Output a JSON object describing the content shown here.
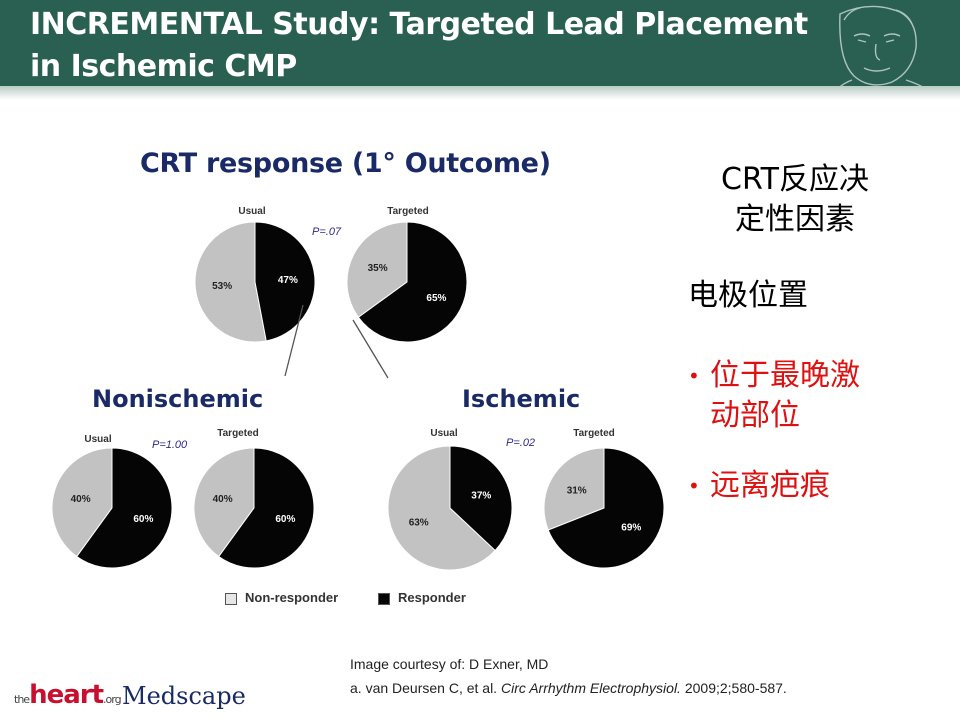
{
  "slide": {
    "title_line1": "INCREMENTAL Study: Targeted Lead Placement",
    "title_line2": "in Ischemic CMP"
  },
  "figure": {
    "title": "CRT response (1° Outcome)",
    "groups": [
      {
        "name": "",
        "p_value": "P=.07",
        "usual": {
          "label": "Usual",
          "non_responder": "53%",
          "responder": "47%"
        },
        "targeted": {
          "label": "Targeted",
          "non_responder": "35%",
          "responder": "65%"
        }
      },
      {
        "name": "Nonischemic",
        "p_value": "P=1.00",
        "usual": {
          "label": "Usual",
          "non_responder": "40%",
          "responder": "60%"
        },
        "targeted": {
          "label": "Targeted",
          "non_responder": "40%",
          "responder": "60%"
        }
      },
      {
        "name": "Ischemic",
        "p_value": "P=.02",
        "usual": {
          "label": "Usual",
          "non_responder": "63%",
          "responder": "37%"
        },
        "targeted": {
          "label": "Targeted",
          "non_responder": "31%",
          "responder": "69%"
        }
      }
    ],
    "legend": {
      "non_responder": "Non-responder",
      "responder": "Responder"
    },
    "colors": {
      "non_responder": "#c2c2c2",
      "responder": "#050505"
    }
  },
  "chart_data": {
    "type": "pie",
    "title": "CRT response (1° Outcome)",
    "series_names": [
      "Non-responder",
      "Responder"
    ],
    "pies": [
      {
        "group": "",
        "arm": "Usual",
        "values": [
          53,
          47
        ]
      },
      {
        "group": "",
        "arm": "Targeted",
        "values": [
          35,
          65
        ]
      },
      {
        "group": "Nonischemic",
        "arm": "Usual",
        "values": [
          40,
          60
        ]
      },
      {
        "group": "Nonischemic",
        "arm": "Targeted",
        "values": [
          40,
          60
        ]
      },
      {
        "group": "Ischemic",
        "arm": "Usual",
        "values": [
          63,
          37
        ]
      },
      {
        "group": "Ischemic",
        "arm": "Targeted",
        "values": [
          31,
          69
        ]
      }
    ],
    "p_values": [
      "P=.07",
      "P=1.00",
      "P=.02"
    ]
  },
  "side": {
    "heading_line1": "CRT反应决",
    "heading_line2": "定性因素",
    "sub": "电极位置",
    "bullets": [
      {
        "line1": "位于最晚激",
        "line2": "动部位"
      },
      {
        "line1": "远离疤痕",
        "line2": ""
      }
    ]
  },
  "citation": {
    "line1": "Image courtesy of: D Exner, MD",
    "line2_prefix": "a. van Deursen C, et al. ",
    "line2_journal": "Circ Arrhythm Electrophysiol.",
    "line2_suffix": " 2009;2;580-587."
  },
  "logos": {
    "heart_small": "the",
    "heart": "heart",
    "heart_suffix": ".org",
    "medscape": "Medscape"
  }
}
